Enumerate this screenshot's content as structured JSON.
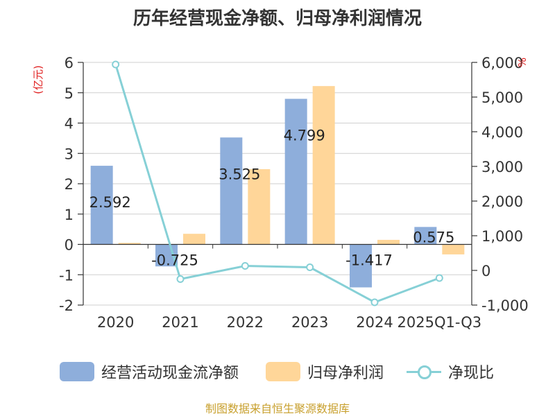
{
  "chart_data": {
    "type": "bar",
    "title": "历年经营现金净额、归母净利润情况",
    "categories": [
      "2020",
      "2021",
      "2022",
      "2023",
      "2024",
      "2025Q1-Q3"
    ],
    "y_left_label": "(亿元)",
    "y_right_label": "%",
    "y_left_lim": [
      -2,
      6
    ],
    "y_left_ticks": [
      "-2",
      "-1",
      "0",
      "1",
      "2",
      "3",
      "4",
      "5",
      "6"
    ],
    "y_right_lim": [
      -1000,
      6000
    ],
    "y_right_ticks": [
      "-1,000",
      "0",
      "1,000",
      "2,000",
      "3,000",
      "4,000",
      "5,000",
      "6,000"
    ],
    "grid": true,
    "legend_position": "bottom",
    "series": [
      {
        "name": "经营活动现金流净额",
        "type": "bar",
        "axis": "left",
        "color": "#8eaedb",
        "values": [
          2.592,
          -0.725,
          3.525,
          4.799,
          -1.417,
          0.575
        ],
        "labels": [
          "2.592",
          "-0.725",
          "3.525",
          "4.799",
          "-1.417",
          "0.575"
        ]
      },
      {
        "name": "归母净利润",
        "type": "bar",
        "axis": "left",
        "color": "#ffd699",
        "values": [
          0.05,
          0.35,
          2.48,
          5.22,
          0.15,
          -0.33
        ]
      },
      {
        "name": "净现比",
        "type": "line",
        "axis": "right",
        "color": "#86d0d6",
        "values": [
          5940,
          -250,
          130,
          90,
          -920,
          -220
        ]
      }
    ],
    "source": "制图数据来自恒生聚源数据库"
  }
}
